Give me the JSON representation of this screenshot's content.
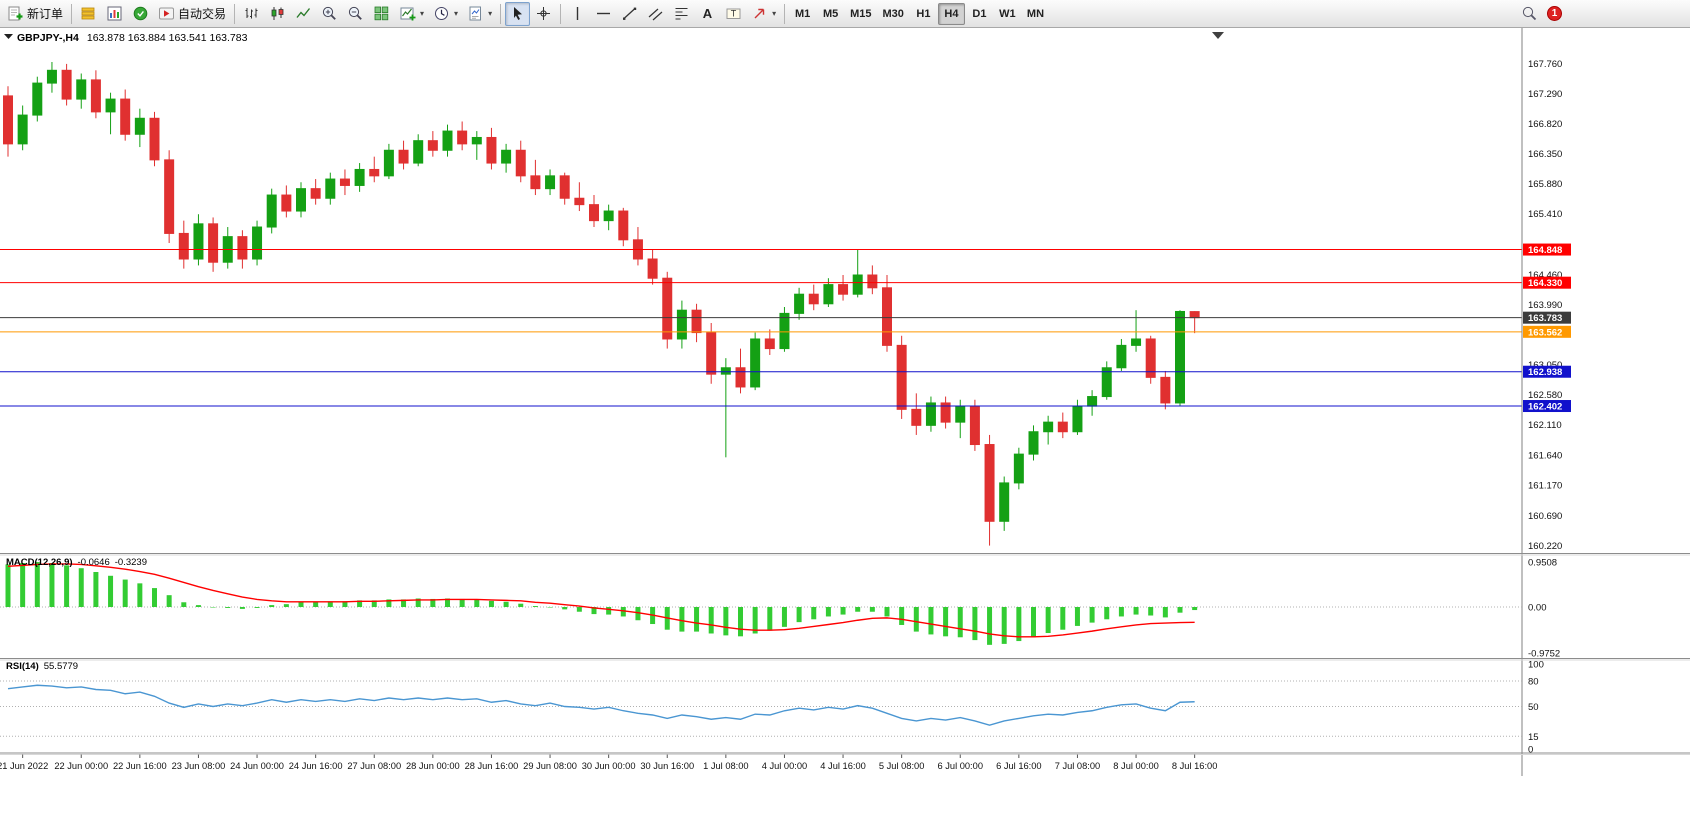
{
  "toolbar": {
    "new_order_label": "新订单",
    "auto_trading_label": "自动交易",
    "timeframes": [
      {
        "label": "M1",
        "active": false
      },
      {
        "label": "M5",
        "active": false
      },
      {
        "label": "M15",
        "active": false
      },
      {
        "label": "M30",
        "active": false
      },
      {
        "label": "H1",
        "active": false
      },
      {
        "label": "H4",
        "active": true
      },
      {
        "label": "D1",
        "active": false
      },
      {
        "label": "W1",
        "active": false
      },
      {
        "label": "MN",
        "active": false
      }
    ],
    "notification_badge": "1"
  },
  "chart": {
    "header": {
      "symbol": "GBPJPY-,H4",
      "ohlc": "163.878 163.884 163.541 163.783"
    },
    "colors": {
      "candle_up": "#14a014",
      "candle_down": "#e03030",
      "macd_histogram": "#33cc33",
      "macd_signal": "#ff0000",
      "rsi_line": "#4a96d2",
      "bid_line": "#3c3c3c",
      "axis_text": "#111111"
    },
    "y_axis_labels": [
      "167.760",
      "167.290",
      "166.820",
      "166.350",
      "165.880",
      "165.410",
      "164.460",
      "163.990",
      "163.050",
      "162.580",
      "162.110",
      "161.640",
      "161.170",
      "160.690",
      "160.220"
    ],
    "price_lines": [
      {
        "label": "164.848",
        "price": 164.848,
        "color": "#ff0000"
      },
      {
        "label": "164.330",
        "price": 164.33,
        "color": "#ff0000"
      },
      {
        "label": "163.783",
        "price": 163.783,
        "color": "#3c3c3c"
      },
      {
        "label": "163.562",
        "price": 163.562,
        "color": "#ff9900"
      },
      {
        "label": "162.938",
        "price": 162.938,
        "color": "#1111cc"
      },
      {
        "label": "162.402",
        "price": 162.402,
        "color": "#1111cc"
      }
    ],
    "x_axis_labels": [
      "21 Jun 2022",
      "22 Jun 00:00",
      "22 Jun 16:00",
      "23 Jun 08:00",
      "24 Jun 00:00",
      "24 Jun 16:00",
      "27 Jun 08:00",
      "28 Jun 00:00",
      "28 Jun 16:00",
      "29 Jun 08:00",
      "30 Jun 00:00",
      "30 Jun 16:00",
      "1 Jul 08:00",
      "4 Jul 00:00",
      "4 Jul 16:00",
      "5 Jul 08:00",
      "6 Jul 00:00",
      "6 Jul 16:00",
      "7 Jul 08:00",
      "8 Jul 00:00",
      "8 Jul 16:00"
    ]
  },
  "chart_data": {
    "type": "candlestick",
    "symbol": "GBPJPY-",
    "timeframe": "H4",
    "price_range": [
      160.12,
      168.28
    ],
    "candles_ohlc": [
      [
        167.25,
        167.4,
        166.3,
        166.5
      ],
      [
        166.5,
        167.1,
        166.4,
        166.95
      ],
      [
        166.95,
        167.55,
        166.85,
        167.45
      ],
      [
        167.45,
        167.78,
        167.3,
        167.65
      ],
      [
        167.65,
        167.75,
        167.1,
        167.2
      ],
      [
        167.2,
        167.6,
        167.05,
        167.5
      ],
      [
        167.5,
        167.65,
        166.9,
        167.0
      ],
      [
        167.0,
        167.3,
        166.65,
        167.2
      ],
      [
        167.2,
        167.35,
        166.55,
        166.65
      ],
      [
        166.65,
        167.05,
        166.45,
        166.9
      ],
      [
        166.9,
        167.0,
        166.15,
        166.25
      ],
      [
        166.25,
        166.4,
        164.95,
        165.1
      ],
      [
        165.1,
        165.3,
        164.55,
        164.7
      ],
      [
        164.7,
        165.4,
        164.6,
        165.25
      ],
      [
        165.25,
        165.35,
        164.5,
        164.65
      ],
      [
        164.65,
        165.2,
        164.55,
        165.05
      ],
      [
        165.05,
        165.15,
        164.55,
        164.7
      ],
      [
        164.7,
        165.3,
        164.6,
        165.2
      ],
      [
        165.2,
        165.8,
        165.1,
        165.7
      ],
      [
        165.7,
        165.85,
        165.35,
        165.45
      ],
      [
        165.45,
        165.9,
        165.35,
        165.8
      ],
      [
        165.8,
        165.95,
        165.55,
        165.65
      ],
      [
        165.65,
        166.05,
        165.55,
        165.95
      ],
      [
        165.95,
        166.1,
        165.7,
        165.85
      ],
      [
        165.85,
        166.2,
        165.75,
        166.1
      ],
      [
        166.1,
        166.3,
        165.9,
        166.0
      ],
      [
        166.0,
        166.5,
        165.95,
        166.4
      ],
      [
        166.4,
        166.55,
        166.1,
        166.2
      ],
      [
        166.2,
        166.65,
        166.15,
        166.55
      ],
      [
        166.55,
        166.7,
        166.3,
        166.4
      ],
      [
        166.4,
        166.8,
        166.3,
        166.7
      ],
      [
        166.7,
        166.85,
        166.4,
        166.5
      ],
      [
        166.5,
        166.7,
        166.25,
        166.6
      ],
      [
        166.6,
        166.75,
        166.1,
        166.2
      ],
      [
        166.2,
        166.5,
        166.05,
        166.4
      ],
      [
        166.4,
        166.55,
        165.9,
        166.0
      ],
      [
        166.0,
        166.25,
        165.7,
        165.8
      ],
      [
        165.8,
        166.1,
        165.7,
        166.0
      ],
      [
        166.0,
        166.05,
        165.55,
        165.65
      ],
      [
        165.65,
        165.9,
        165.45,
        165.55
      ],
      [
        165.55,
        165.7,
        165.2,
        165.3
      ],
      [
        165.3,
        165.55,
        165.15,
        165.45
      ],
      [
        165.45,
        165.5,
        164.9,
        165.0
      ],
      [
        165.0,
        165.2,
        164.6,
        164.7
      ],
      [
        164.7,
        164.85,
        164.3,
        164.4
      ],
      [
        164.4,
        164.5,
        163.3,
        163.45
      ],
      [
        163.45,
        164.05,
        163.3,
        163.9
      ],
      [
        163.9,
        164.0,
        163.4,
        163.55
      ],
      [
        163.55,
        163.7,
        162.75,
        162.9
      ],
      [
        162.9,
        163.15,
        161.6,
        163.0
      ],
      [
        163.0,
        163.3,
        162.6,
        162.7
      ],
      [
        162.7,
        163.55,
        162.65,
        163.45
      ],
      [
        163.45,
        163.6,
        163.2,
        163.3
      ],
      [
        163.3,
        163.95,
        163.25,
        163.85
      ],
      [
        163.85,
        164.25,
        163.75,
        164.15
      ],
      [
        164.15,
        164.3,
        163.9,
        164.0
      ],
      [
        164.0,
        164.4,
        163.95,
        164.3
      ],
      [
        164.3,
        164.45,
        164.05,
        164.15
      ],
      [
        164.15,
        164.85,
        164.1,
        164.45
      ],
      [
        164.45,
        164.6,
        164.15,
        164.25
      ],
      [
        164.25,
        164.45,
        163.25,
        163.35
      ],
      [
        163.35,
        163.5,
        162.2,
        162.35
      ],
      [
        162.35,
        162.6,
        161.95,
        162.1
      ],
      [
        162.1,
        162.55,
        162.0,
        162.45
      ],
      [
        162.45,
        162.55,
        162.05,
        162.15
      ],
      [
        162.15,
        162.5,
        161.9,
        162.4
      ],
      [
        162.4,
        162.5,
        161.7,
        161.8
      ],
      [
        161.8,
        161.95,
        160.22,
        160.6
      ],
      [
        160.6,
        161.3,
        160.45,
        161.2
      ],
      [
        161.2,
        161.75,
        161.1,
        161.65
      ],
      [
        161.65,
        162.1,
        161.55,
        162.0
      ],
      [
        162.0,
        162.25,
        161.8,
        162.15
      ],
      [
        162.15,
        162.3,
        161.9,
        162.0
      ],
      [
        162.0,
        162.5,
        161.95,
        162.4
      ],
      [
        162.4,
        162.65,
        162.25,
        162.55
      ],
      [
        162.55,
        163.1,
        162.5,
        163.0
      ],
      [
        163.0,
        163.45,
        162.95,
        163.35
      ],
      [
        163.35,
        163.9,
        163.25,
        163.45
      ],
      [
        163.45,
        163.5,
        162.75,
        162.85
      ],
      [
        162.85,
        162.95,
        162.35,
        162.45
      ],
      [
        162.45,
        163.9,
        162.4,
        163.88
      ],
      [
        163.878,
        163.884,
        163.541,
        163.783
      ]
    ],
    "macd": {
      "label": "MACD(12,26,9)",
      "value_main": "-0.0646",
      "value_signal": "-0.3239",
      "scale_labels": [
        "0.9508",
        "0.00",
        "-0.9752"
      ],
      "scale_range": [
        -0.9752,
        0.9508
      ],
      "histogram": [
        0.9,
        0.93,
        0.95,
        0.93,
        0.88,
        0.82,
        0.74,
        0.66,
        0.58,
        0.5,
        0.4,
        0.25,
        0.1,
        0.04,
        0.0,
        -0.02,
        -0.04,
        -0.02,
        0.04,
        0.06,
        0.1,
        0.1,
        0.12,
        0.12,
        0.14,
        0.14,
        0.16,
        0.16,
        0.18,
        0.17,
        0.18,
        0.17,
        0.16,
        0.13,
        0.11,
        0.07,
        0.02,
        0.0,
        -0.05,
        -0.1,
        -0.15,
        -0.16,
        -0.2,
        -0.28,
        -0.36,
        -0.48,
        -0.52,
        -0.52,
        -0.56,
        -0.6,
        -0.62,
        -0.56,
        -0.5,
        -0.42,
        -0.32,
        -0.26,
        -0.2,
        -0.16,
        -0.1,
        -0.1,
        -0.2,
        -0.38,
        -0.52,
        -0.58,
        -0.62,
        -0.64,
        -0.7,
        -0.8,
        -0.78,
        -0.72,
        -0.64,
        -0.55,
        -0.48,
        -0.4,
        -0.33,
        -0.26,
        -0.2,
        -0.16,
        -0.18,
        -0.22,
        -0.12,
        -0.0646
      ],
      "signal": [
        0.86,
        0.88,
        0.9,
        0.91,
        0.91,
        0.9,
        0.87,
        0.84,
        0.8,
        0.75,
        0.69,
        0.61,
        0.52,
        0.43,
        0.35,
        0.28,
        0.21,
        0.16,
        0.13,
        0.11,
        0.11,
        0.11,
        0.11,
        0.11,
        0.12,
        0.12,
        0.13,
        0.14,
        0.15,
        0.15,
        0.16,
        0.16,
        0.16,
        0.15,
        0.14,
        0.13,
        0.1,
        0.08,
        0.05,
        0.02,
        -0.02,
        -0.05,
        -0.08,
        -0.12,
        -0.17,
        -0.23,
        -0.29,
        -0.34,
        -0.38,
        -0.43,
        -0.47,
        -0.49,
        -0.49,
        -0.48,
        -0.45,
        -0.41,
        -0.37,
        -0.33,
        -0.28,
        -0.24,
        -0.23,
        -0.26,
        -0.31,
        -0.36,
        -0.41,
        -0.46,
        -0.51,
        -0.57,
        -0.61,
        -0.63,
        -0.63,
        -0.62,
        -0.59,
        -0.55,
        -0.51,
        -0.46,
        -0.42,
        -0.38,
        -0.35,
        -0.34,
        -0.33,
        -0.3239
      ]
    },
    "rsi": {
      "label": "RSI(14)",
      "value": "55.5779",
      "scale_labels": [
        "100",
        "80",
        "50",
        "15",
        "0"
      ],
      "levels": [
        80,
        50,
        15
      ],
      "range": [
        0,
        100
      ],
      "values": [
        71,
        73,
        75,
        74,
        72,
        73,
        70,
        69,
        65,
        67,
        62,
        54,
        49,
        53,
        50,
        53,
        51,
        54,
        58,
        55,
        58,
        56,
        58,
        56,
        59,
        57,
        60,
        58,
        60,
        58,
        60,
        58,
        59,
        55,
        57,
        53,
        51,
        54,
        50,
        49,
        47,
        49,
        45,
        42,
        40,
        36,
        40,
        38,
        35,
        37,
        35,
        41,
        40,
        45,
        48,
        46,
        49,
        47,
        51,
        48,
        42,
        36,
        33,
        36,
        34,
        37,
        33,
        28,
        33,
        36,
        39,
        41,
        40,
        43,
        45,
        49,
        52,
        53,
        48,
        45,
        55,
        55.58
      ]
    }
  }
}
